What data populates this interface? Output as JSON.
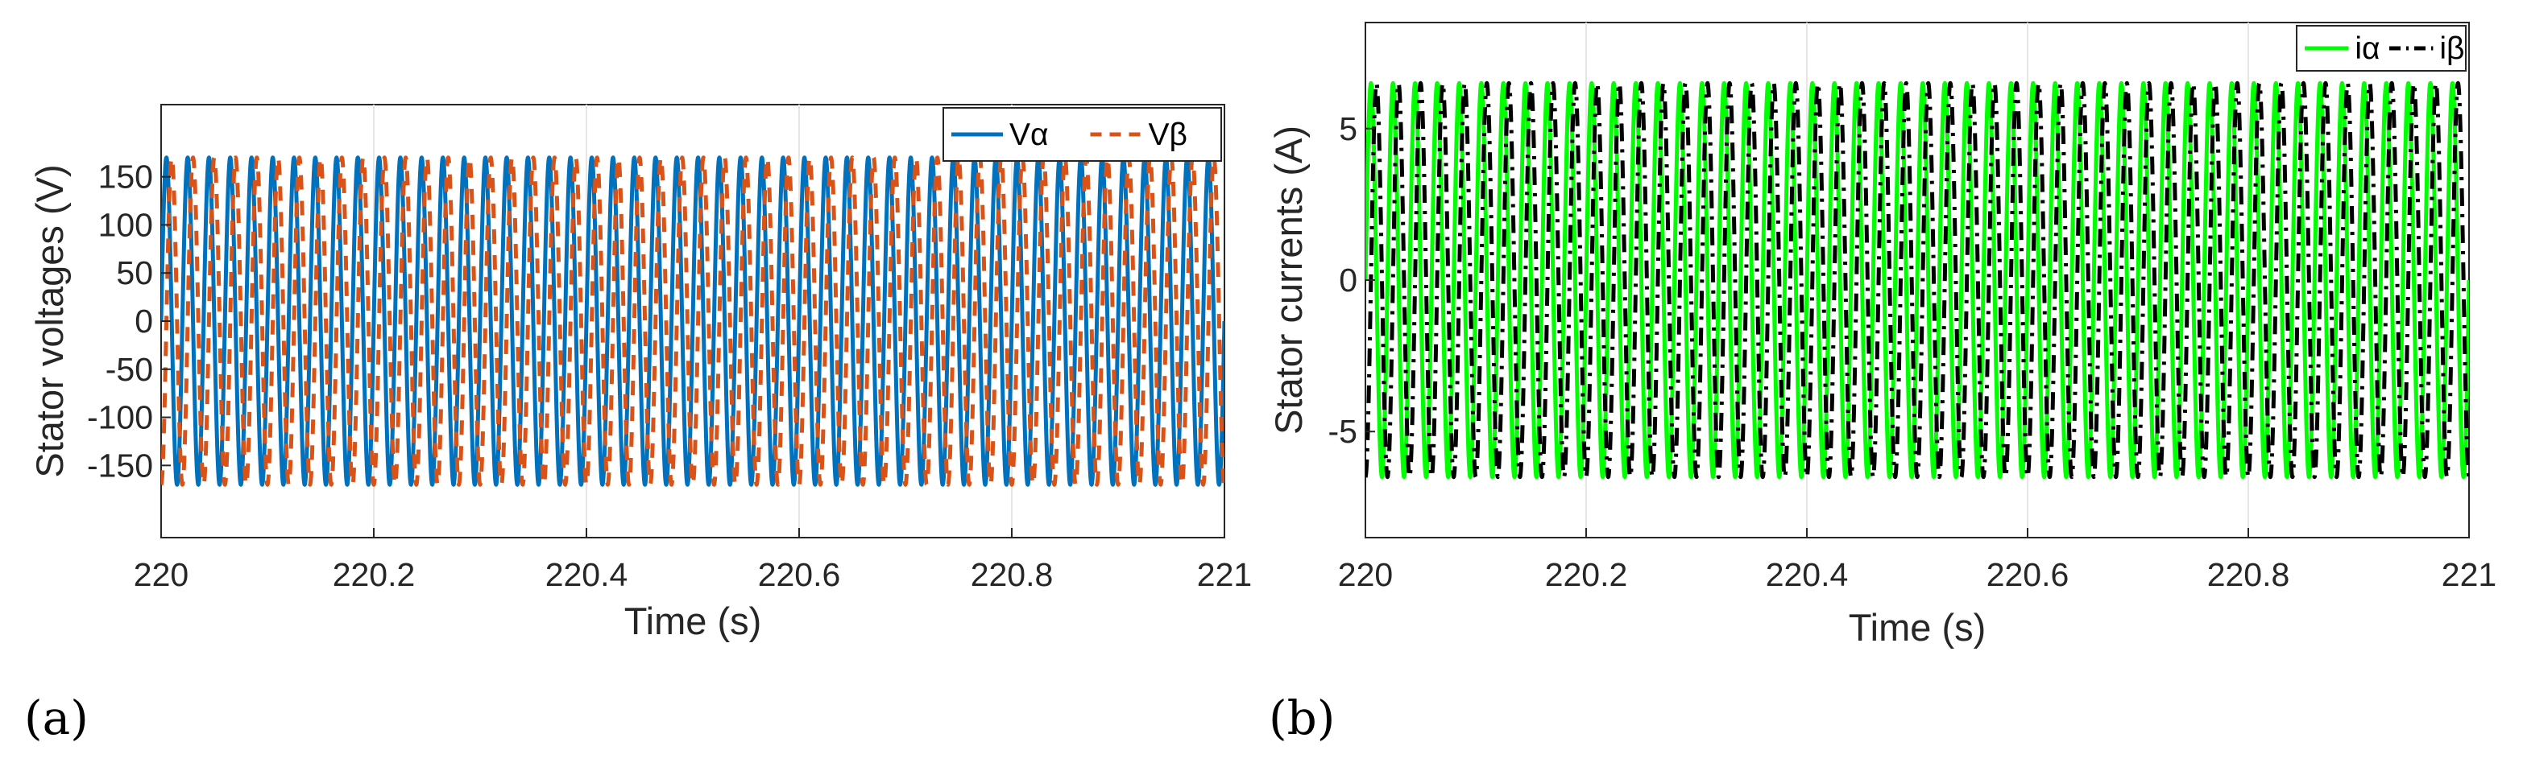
{
  "chart_data": [
    {
      "type": "line",
      "panel_label": "(a)",
      "xlabel": "Time (s)",
      "ylabel": "Stator voltages (V)",
      "xlim": [
        220,
        221
      ],
      "ylim": [
        -225,
        225
      ],
      "xticks": [
        220,
        220.2,
        220.4,
        220.6,
        220.8,
        221
      ],
      "xtick_labels": [
        "220",
        "220.2",
        "220.4",
        "220.6",
        "220.8",
        "221"
      ],
      "yticks": [
        150,
        100,
        50,
        0,
        -50,
        -100,
        -150
      ],
      "ytick_labels": [
        "150",
        "100",
        "50",
        "0",
        "-50",
        "-100",
        "-150"
      ],
      "grid": true,
      "legend_position": "top-right",
      "frequency_hz": 50,
      "series": [
        {
          "name": "Vα",
          "amplitude": 170,
          "phase_deg": 0,
          "color": "#0072BD",
          "style": "solid"
        },
        {
          "name": "Vβ",
          "amplitude": 170,
          "phase_deg": -90,
          "color": "#D95319",
          "style": "dashed"
        }
      ]
    },
    {
      "type": "line",
      "panel_label": "(b)",
      "xlabel": "Time (s)",
      "ylabel": "Stator currents (A)",
      "xlim": [
        220,
        221
      ],
      "ylim": [
        -8.5,
        8.5
      ],
      "xticks": [
        220,
        220.2,
        220.4,
        220.6,
        220.8,
        221
      ],
      "xtick_labels": [
        "220",
        "220.2",
        "220.4",
        "220.6",
        "220.8",
        "221"
      ],
      "yticks": [
        5,
        0,
        -5
      ],
      "ytick_labels": [
        "5",
        "0",
        "-5"
      ],
      "grid": true,
      "legend_position": "top-right",
      "frequency_hz": 50,
      "series": [
        {
          "name": "iα",
          "amplitude": 6.5,
          "phase_deg": 0,
          "color": "#00FF00",
          "style": "solid"
        },
        {
          "name": "iβ",
          "amplitude": 6.5,
          "phase_deg": -90,
          "color": "#000000",
          "style": "dashdot"
        }
      ]
    }
  ]
}
